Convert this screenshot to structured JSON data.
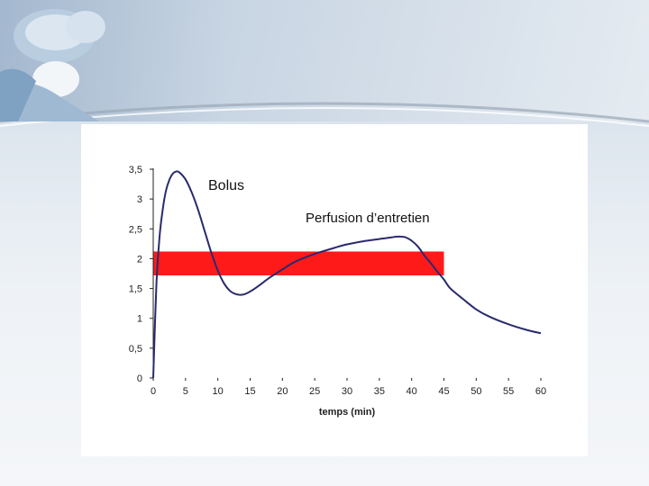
{
  "slide": {
    "decor": "surgeon-photo"
  },
  "chart_data": {
    "type": "line",
    "title": "",
    "xlabel": "temps (min)",
    "ylabel": "",
    "xlim": [
      0,
      60
    ],
    "ylim": [
      0,
      3.5
    ],
    "x_ticks": [
      "0",
      "5",
      "10",
      "15",
      "20",
      "25",
      "30",
      "35",
      "40",
      "45",
      "50",
      "55",
      "60"
    ],
    "y_ticks": [
      "0",
      "0,5",
      "1",
      "1,5",
      "2",
      "2,5",
      "3",
      "3,5"
    ],
    "grid": false,
    "annotations": [
      {
        "text": "Bolus"
      },
      {
        "text": "Perfusion d’entretien"
      }
    ],
    "target_band": {
      "y_min": 1.72,
      "y_max": 2.12,
      "x_min": 0,
      "x_max": 45,
      "color": "#ff1a1a"
    },
    "series": [
      {
        "color": "#2a2a6e",
        "x": [
          0,
          0.5,
          1,
          1.5,
          2,
          2.5,
          3,
          3.5,
          4,
          5,
          6,
          7,
          8,
          9,
          10,
          11,
          12,
          13,
          14,
          15,
          16,
          18,
          20,
          22,
          25,
          28,
          30,
          33,
          35,
          37,
          38,
          39,
          40,
          41,
          42,
          43,
          44,
          45,
          46,
          48,
          50,
          52,
          55,
          58,
          60
        ],
        "y": [
          0,
          1.6,
          2.4,
          2.85,
          3.15,
          3.32,
          3.42,
          3.46,
          3.45,
          3.33,
          3.1,
          2.8,
          2.45,
          2.1,
          1.8,
          1.58,
          1.45,
          1.4,
          1.4,
          1.45,
          1.52,
          1.68,
          1.82,
          1.95,
          2.08,
          2.18,
          2.24,
          2.3,
          2.33,
          2.36,
          2.37,
          2.36,
          2.3,
          2.2,
          2.05,
          1.92,
          1.78,
          1.65,
          1.5,
          1.32,
          1.15,
          1.03,
          0.9,
          0.8,
          0.75
        ]
      }
    ]
  }
}
